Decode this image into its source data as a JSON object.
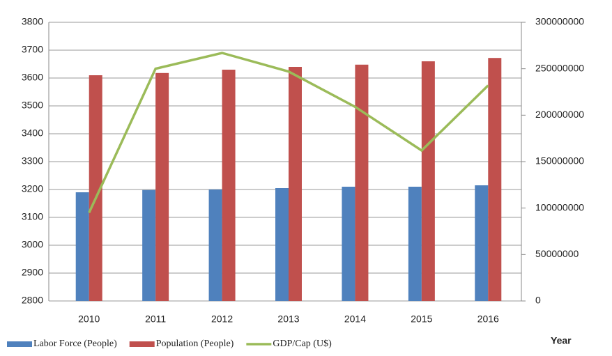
{
  "chart_data": {
    "type": "bar",
    "categories": [
      "2010",
      "2011",
      "2012",
      "2013",
      "2014",
      "2015",
      "2016"
    ],
    "series": [
      {
        "name": "Labor Force (People)",
        "color": "#4f81bd",
        "values": [
          3190,
          3198,
          3200,
          3205,
          3210,
          3210,
          3215
        ]
      },
      {
        "name": "Population (People)",
        "color": "#c0504d",
        "values": [
          3610,
          3618,
          3630,
          3640,
          3648,
          3660,
          3672
        ]
      },
      {
        "name": "GDP/Cap (U$)",
        "color": "#9bbb59",
        "type": "line",
        "axis": "y2",
        "values": [
          95000000,
          250000000,
          267000000,
          247000000,
          209000000,
          162000000,
          232000000
        ]
      }
    ],
    "ylim": [
      2800,
      3800
    ],
    "yticks": [
      2800,
      2900,
      3000,
      3100,
      3200,
      3300,
      3400,
      3500,
      3600,
      3700,
      3800
    ],
    "y2lim": [
      0,
      300000000
    ],
    "y2ticks": [
      0,
      50000000,
      100000000,
      150000000,
      200000000,
      250000000,
      300000000
    ],
    "xlabel": "Year",
    "grid": true,
    "legend": "bottom"
  }
}
